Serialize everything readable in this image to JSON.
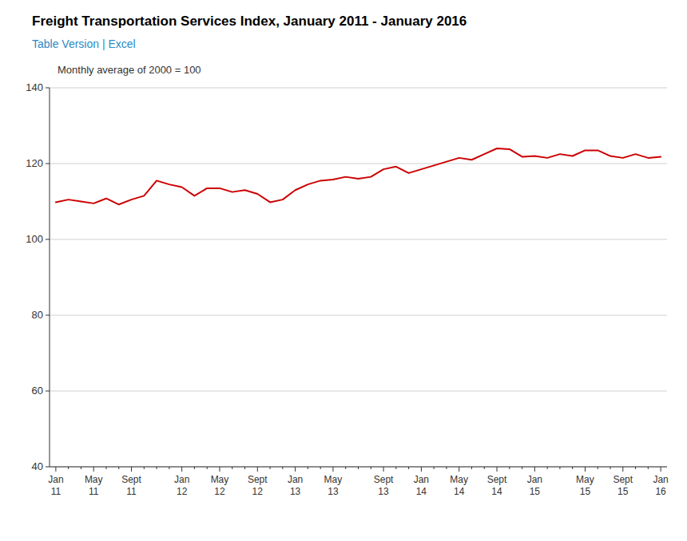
{
  "chart_data": {
    "type": "line",
    "title": "Freight Transportation Services Index, January 2011 - January 2016",
    "subtitle": "Table Version | Excel",
    "y_label": "Monthly average of 2000 = 100",
    "color": "#cc0000",
    "grid": true,
    "ylim": [
      40,
      140
    ],
    "yticks": [
      40,
      60,
      80,
      100,
      120,
      140
    ],
    "categories": [
      "Jan\n11",
      null,
      null,
      "May\n11",
      null,
      null,
      "Sept\n11",
      null,
      null,
      null,
      "Jan\n12",
      null,
      null,
      "May\n12",
      null,
      null,
      "Sept\n12",
      null,
      null,
      "Jan\n13",
      null,
      null,
      "May\n13",
      null,
      null,
      null,
      "Sept\n13",
      null,
      null,
      "Jan\n14",
      null,
      null,
      "May\n14",
      null,
      null,
      "Sept\n14",
      null,
      null,
      "Jan\n15",
      null,
      null,
      null,
      "May\n15",
      null,
      null,
      "Sept\n15",
      null,
      null,
      "Jan\n16"
    ],
    "values": [
      109.8,
      110.5,
      110.0,
      109.5,
      110.8,
      109.2,
      110.5,
      111.5,
      115.5,
      114.5,
      113.8,
      111.5,
      113.5,
      113.5,
      112.5,
      113.0,
      112.0,
      109.8,
      110.5,
      113.0,
      114.5,
      115.5,
      115.8,
      116.5,
      116.0,
      116.5,
      118.5,
      119.2,
      117.5,
      118.5,
      119.5,
      120.5,
      121.5,
      121.0,
      122.5,
      124.0,
      123.8,
      121.8,
      122.0,
      121.5,
      122.5,
      122.0,
      123.5,
      123.5,
      122.0,
      121.5,
      122.5,
      121.5,
      121.8
    ]
  }
}
